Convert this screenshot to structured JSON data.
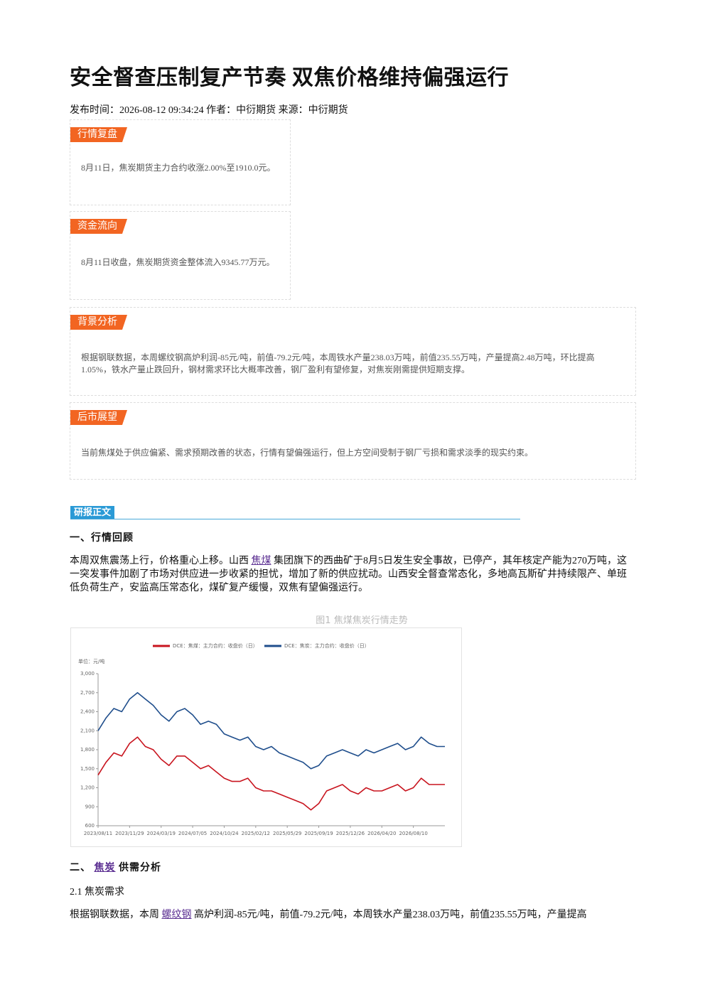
{
  "header": {
    "title": "安全督查压制复产节奏 双焦价格维持偏强运行",
    "meta": "发布时间：2026-08-12 09:34:24 作者：中衍期货 来源：中衍期货"
  },
  "boxes": [
    {
      "tag": "行情复盘",
      "text": "8月11日，焦炭期货主力合约收涨2.00%至1910.0元。"
    },
    {
      "tag": "资金流向",
      "text": "8月11日收盘，焦炭期货资金整体流入9345.77万元。"
    },
    {
      "tag": "背景分析",
      "text": "根据钢联数据，本周螺纹钢高炉利润-85元/吨，前值-79.2元/吨，本周铁水产量238.03万吨，前值235.55万吨，产量提高2.48万吨，环比提高1.05%，铁水产量止跌回升，钢材需求环比大概率改善，钢厂盈利有望修复，对焦炭刚需提供短期支撑。"
    },
    {
      "tag": "后市展望",
      "text": "当前焦煤处于供应偏紧、需求预期改善的状态，行情有望偏强运行，但上方空间受制于钢厂亏损和需求淡季的现实约束。"
    }
  ],
  "banner": "研报正文",
  "section1": {
    "heading": "一、行情回顾",
    "paragraph": [
      {
        "text": "本周双焦震荡上行，价格重心上移。山西 "
      },
      {
        "link": "焦煤"
      },
      {
        "text": " 集团旗下的西曲矿于8月5日发生安全事故，已停产，其年核定产能为270万吨，这一突发事件加剧了市场对供应进一步收紧的担忧，增加了新的供应扰动。山西安全督查常态化，多地高瓦斯矿井持续限产、单班低负荷生产，安监高压常态化，煤矿复产缓慢，双焦有望偏强运行。"
      }
    ]
  },
  "figure": {
    "caption": "图1 焦煤焦炭行情走势",
    "chart_data": {
      "type": "line",
      "unit": "单位：元/吨",
      "categories": [
        "2023/08/11",
        null,
        null,
        null,
        "2023/11/29",
        null,
        null,
        null,
        "2024/03/19",
        null,
        null,
        null,
        "2024/07/05",
        null,
        null,
        null,
        "2024/10/24",
        null,
        null,
        null,
        "2025/02/12",
        null,
        null,
        null,
        "2025/05/29",
        null,
        null,
        null,
        "2025/09/19",
        null,
        null,
        null,
        "2025/12/26",
        null,
        null,
        null,
        "2026/04/20",
        null,
        null,
        null,
        "2026/08/10",
        null,
        null,
        null,
        null
      ],
      "series": [
        {
          "name": "DCE：焦煤：主力合约：收盘价（日）",
          "color": "#c8141e",
          "values": [
            1400,
            1600,
            1750,
            1700,
            1900,
            2000,
            1850,
            1800,
            1650,
            1550,
            1700,
            1700,
            1600,
            1500,
            1550,
            1450,
            1350,
            1300,
            1300,
            1350,
            1200,
            1150,
            1150,
            1100,
            1050,
            1000,
            950,
            850,
            950,
            1150,
            1200,
            1250,
            1150,
            1100,
            1200,
            1150,
            1150,
            1200,
            1250,
            1150,
            1200,
            1350,
            1250,
            1250,
            1250
          ]
        },
        {
          "name": "DCE：焦炭：主力合约：收盘价（日）",
          "color": "#1f4e8c",
          "values": [
            2100,
            2300,
            2450,
            2400,
            2600,
            2700,
            2600,
            2500,
            2350,
            2250,
            2400,
            2450,
            2350,
            2200,
            2250,
            2200,
            2050,
            2000,
            1950,
            2000,
            1850,
            1800,
            1850,
            1750,
            1700,
            1650,
            1600,
            1500,
            1550,
            1700,
            1750,
            1800,
            1750,
            1700,
            1800,
            1750,
            1800,
            1850,
            1900,
            1800,
            1850,
            2000,
            1900,
            1850,
            1850
          ]
        }
      ],
      "ylim": [
        600,
        3000
      ],
      "yticks": [
        {
          "value": 3000,
          "label": "3,000"
        },
        {
          "value": 2700,
          "label": "2,700"
        },
        {
          "value": 2400,
          "label": "2,400"
        },
        {
          "value": 2100,
          "label": "2,100"
        },
        {
          "value": 1800,
          "label": "1,800"
        },
        {
          "value": 1500,
          "label": "1,500"
        },
        {
          "value": 1200,
          "label": "1,200"
        },
        900,
        600
      ],
      "grid": false
    }
  },
  "section2": {
    "heading": [
      {
        "text": "二、 "
      },
      {
        "link": "焦炭"
      },
      {
        "text": " 供需分析"
      }
    ],
    "subheading": "2.1 焦炭需求",
    "paragraph": [
      {
        "text": "根据钢联数据，本周 "
      },
      {
        "link": "螺纹钢"
      },
      {
        "text": " 高炉利润-85元/吨，前值-79.2元/吨，本周铁水产量238.03万吨，前值235.55万吨，产量提高"
      }
    ]
  }
}
